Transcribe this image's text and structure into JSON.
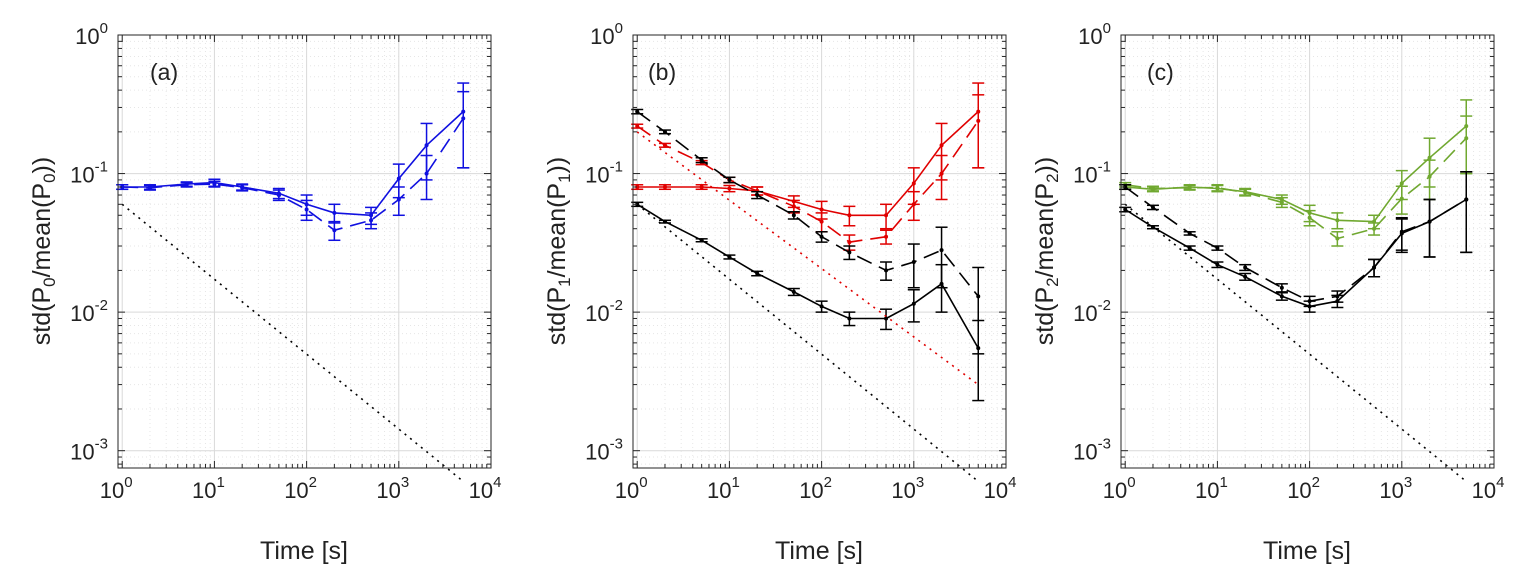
{
  "chart_data": [
    {
      "type": "line",
      "panel_label": "(a)",
      "xscale": "log",
      "yscale": "log",
      "xlim": [
        0.9,
        10000
      ],
      "ylim": [
        0.00075,
        1
      ],
      "xticks": [
        {
          "base": "10",
          "exp": "0"
        },
        {
          "base": "10",
          "exp": "1"
        },
        {
          "base": "10",
          "exp": "2"
        },
        {
          "base": "10",
          "exp": "3"
        },
        {
          "base": "10",
          "exp": "4"
        }
      ],
      "yticks": [
        {
          "base": "10",
          "exp": "-3"
        },
        {
          "base": "10",
          "exp": "-2"
        },
        {
          "base": "10",
          "exp": "-1"
        },
        {
          "base": "10",
          "exp": "0"
        }
      ],
      "xlabel": "Time [s]",
      "ylabel": {
        "pre": "std(P",
        "sub1": "0",
        "mid": "/mean(P",
        "sub2": "0",
        "post": "))"
      },
      "grid": true,
      "series": [
        {
          "name": "P0 solid",
          "color": "#1010e0",
          "dash": "solid",
          "x": [
            1,
            2,
            5,
            10,
            20,
            50,
            100,
            200,
            500,
            1000,
            2000,
            5000
          ],
          "y": [
            0.08,
            0.08,
            0.084,
            0.086,
            0.08,
            0.072,
            0.06,
            0.052,
            0.05,
            0.092,
            0.16,
            0.28
          ],
          "err": [
            0.003,
            0.003,
            0.003,
            0.005,
            0.004,
            0.006,
            0.01,
            0.008,
            0.007,
            0.025,
            0.07,
            0.17
          ]
        },
        {
          "name": "P0 dashed",
          "color": "#1010e0",
          "dash": "dashed",
          "x": [
            1,
            2,
            5,
            10,
            20,
            50,
            100,
            200,
            500,
            1000,
            2000,
            5000
          ],
          "y": [
            0.08,
            0.079,
            0.083,
            0.084,
            0.079,
            0.07,
            0.055,
            0.039,
            0.046,
            0.065,
            0.1,
            0.25
          ],
          "err": [
            0.003,
            0.003,
            0.003,
            0.004,
            0.004,
            0.006,
            0.009,
            0.006,
            0.006,
            0.015,
            0.035,
            0.14
          ]
        },
        {
          "name": "reference",
          "color": "#000000",
          "dash": "dotted",
          "x": [
            1,
            5000
          ],
          "y": [
            0.06,
            0.0006
          ],
          "err": null
        }
      ]
    },
    {
      "type": "line",
      "panel_label": "(b)",
      "xscale": "log",
      "yscale": "log",
      "xlim": [
        0.9,
        10000
      ],
      "ylim": [
        0.00075,
        1
      ],
      "xticks": [
        {
          "base": "10",
          "exp": "0"
        },
        {
          "base": "10",
          "exp": "1"
        },
        {
          "base": "10",
          "exp": "2"
        },
        {
          "base": "10",
          "exp": "3"
        },
        {
          "base": "10",
          "exp": "4"
        }
      ],
      "yticks": [
        {
          "base": "10",
          "exp": "-3"
        },
        {
          "base": "10",
          "exp": "-2"
        },
        {
          "base": "10",
          "exp": "-1"
        },
        {
          "base": "10",
          "exp": "0"
        }
      ],
      "xlabel": "Time [s]",
      "ylabel": {
        "pre": "std(P",
        "sub1": "1",
        "mid": "/mean(P",
        "sub2": "1",
        "post": "))"
      },
      "grid": true,
      "series": [
        {
          "name": "P1 red solid",
          "color": "#e00000",
          "dash": "solid",
          "x": [
            1,
            2,
            5,
            10,
            20,
            50,
            100,
            200,
            500,
            1000,
            2000,
            5000
          ],
          "y": [
            0.08,
            0.08,
            0.08,
            0.078,
            0.075,
            0.063,
            0.055,
            0.05,
            0.05,
            0.085,
            0.16,
            0.28
          ],
          "err": [
            0.003,
            0.003,
            0.003,
            0.004,
            0.005,
            0.006,
            0.008,
            0.008,
            0.01,
            0.025,
            0.07,
            0.17
          ]
        },
        {
          "name": "P1 red dashed",
          "color": "#e00000",
          "dash": "dashed",
          "x": [
            1,
            2,
            5,
            10,
            20,
            50,
            100,
            200,
            500,
            1000,
            2000,
            5000
          ],
          "y": [
            0.22,
            0.16,
            0.12,
            0.09,
            0.075,
            0.058,
            0.045,
            0.032,
            0.035,
            0.06,
            0.1,
            0.24
          ],
          "err": [
            0.007,
            0.005,
            0.004,
            0.004,
            0.005,
            0.006,
            0.007,
            0.004,
            0.004,
            0.014,
            0.035,
            0.13
          ]
        },
        {
          "name": "P1 black solid",
          "color": "#000000",
          "dash": "solid",
          "x": [
            1,
            2,
            5,
            10,
            20,
            50,
            100,
            200,
            500,
            1000,
            2000,
            5000
          ],
          "y": [
            0.06,
            0.045,
            0.033,
            0.025,
            0.019,
            0.014,
            0.011,
            0.009,
            0.009,
            0.0115,
            0.016,
            0.0055
          ],
          "err": [
            0.002,
            0.001,
            0.0008,
            0.0008,
            0.0007,
            0.0008,
            0.001,
            0.001,
            0.0015,
            0.003,
            0.006,
            0.0032
          ]
        },
        {
          "name": "P1 black dashed",
          "color": "#000000",
          "dash": "dashed",
          "x": [
            1,
            2,
            5,
            10,
            20,
            50,
            100,
            200,
            500,
            1000,
            2000,
            5000
          ],
          "y": [
            0.28,
            0.2,
            0.125,
            0.09,
            0.07,
            0.05,
            0.035,
            0.027,
            0.02,
            0.023,
            0.028,
            0.013
          ],
          "err": [
            0.01,
            0.006,
            0.005,
            0.004,
            0.004,
            0.003,
            0.003,
            0.003,
            0.003,
            0.008,
            0.013,
            0.008
          ]
        },
        {
          "name": "reference red",
          "color": "#e00000",
          "dash": "dotted",
          "x": [
            1,
            5000
          ],
          "y": [
            0.2,
            0.003
          ],
          "err": null
        },
        {
          "name": "reference black",
          "color": "#000000",
          "dash": "dotted",
          "x": [
            1,
            5000
          ],
          "y": [
            0.06,
            0.0006
          ],
          "err": null
        }
      ]
    },
    {
      "type": "line",
      "panel_label": "(c)",
      "xscale": "log",
      "yscale": "log",
      "xlim": [
        0.9,
        10000
      ],
      "ylim": [
        0.00075,
        1
      ],
      "xticks": [
        {
          "base": "10",
          "exp": "0"
        },
        {
          "base": "10",
          "exp": "1"
        },
        {
          "base": "10",
          "exp": "2"
        },
        {
          "base": "10",
          "exp": "3"
        },
        {
          "base": "10",
          "exp": "4"
        }
      ],
      "yticks": [
        {
          "base": "10",
          "exp": "-3"
        },
        {
          "base": "10",
          "exp": "-2"
        },
        {
          "base": "10",
          "exp": "-1"
        },
        {
          "base": "10",
          "exp": "0"
        }
      ],
      "xlabel": "Time [s]",
      "ylabel": {
        "pre": "std(P",
        "sub1": "2",
        "mid": "/mean(P",
        "sub2": "2",
        "post": "))"
      },
      "grid": true,
      "series": [
        {
          "name": "P2 green solid",
          "color": "#70a830",
          "dash": "solid",
          "x": [
            1,
            2,
            5,
            10,
            20,
            50,
            100,
            200,
            500,
            1000,
            2000,
            5000
          ],
          "y": [
            0.08,
            0.077,
            0.08,
            0.078,
            0.074,
            0.065,
            0.052,
            0.046,
            0.045,
            0.085,
            0.13,
            0.22
          ],
          "err": [
            0.003,
            0.003,
            0.003,
            0.004,
            0.004,
            0.005,
            0.007,
            0.006,
            0.005,
            0.02,
            0.05,
            0.12
          ]
        },
        {
          "name": "P2 green dashed",
          "color": "#70a830",
          "dash": "dashed",
          "x": [
            1,
            2,
            5,
            10,
            20,
            50,
            100,
            200,
            500,
            1000,
            2000,
            5000
          ],
          "y": [
            0.083,
            0.078,
            0.079,
            0.079,
            0.073,
            0.062,
            0.048,
            0.034,
            0.04,
            0.066,
            0.095,
            0.18
          ],
          "err": [
            0.003,
            0.003,
            0.003,
            0.004,
            0.004,
            0.005,
            0.006,
            0.004,
            0.004,
            0.015,
            0.03,
            0.08
          ]
        },
        {
          "name": "P2 black solid",
          "color": "#000000",
          "dash": "solid",
          "x": [
            1,
            2,
            5,
            10,
            20,
            50,
            100,
            200,
            500,
            1000,
            2000,
            5000
          ],
          "y": [
            0.055,
            0.041,
            0.029,
            0.022,
            0.018,
            0.013,
            0.011,
            0.012,
            0.021,
            0.037,
            0.045,
            0.065
          ],
          "err": [
            0.002,
            0.001,
            0.001,
            0.001,
            0.001,
            0.0008,
            0.001,
            0.0012,
            0.003,
            0.01,
            0.02,
            0.038
          ]
        },
        {
          "name": "P2 black dashed",
          "color": "#000000",
          "dash": "dashed",
          "x": [
            1,
            2,
            5,
            10,
            20,
            50,
            100,
            200,
            500,
            1000,
            2000,
            5000
          ],
          "y": [
            0.08,
            0.057,
            0.037,
            0.029,
            0.021,
            0.015,
            0.012,
            0.013,
            0.021,
            0.038,
            0.045,
            0.065
          ],
          "err": [
            0.003,
            0.002,
            0.001,
            0.001,
            0.001,
            0.001,
            0.001,
            0.0012,
            0.003,
            0.01,
            0.02,
            0.038
          ]
        },
        {
          "name": "reference",
          "color": "#000000",
          "dash": "dotted",
          "x": [
            1,
            5000
          ],
          "y": [
            0.06,
            0.0006
          ],
          "err": null
        }
      ]
    }
  ]
}
